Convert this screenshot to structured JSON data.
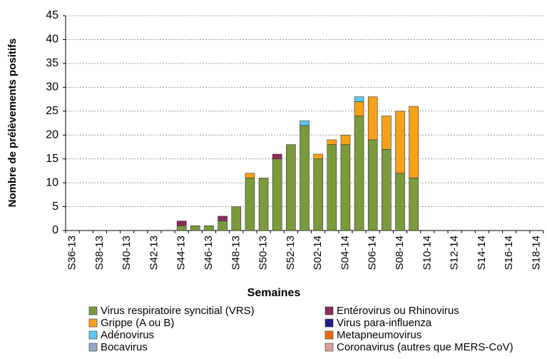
{
  "chart_data": {
    "type": "stacked_bar",
    "y_label": "Nombre de prélèvements positifs",
    "x_label": "Semaines",
    "categories": [
      "S36-13",
      null,
      "S38-13",
      null,
      "S40-13",
      null,
      "S42-13",
      null,
      "S44-13",
      null,
      "S46-13",
      null,
      "S48-13",
      null,
      "S50-13",
      null,
      "S52-13",
      null,
      "S02-14",
      null,
      "S04-14",
      null,
      "S06-14",
      null,
      "S08-14",
      null,
      "S10-14",
      null,
      "S12-14",
      null,
      "S14-14",
      null,
      "S16-14",
      null,
      "S18-14"
    ],
    "series": [
      {
        "name": "Virus respiratoire syncitial (VRS)",
        "color": "#7a9a3c",
        "values": [
          0,
          0,
          0,
          0,
          0,
          0,
          0,
          0,
          1,
          1,
          1,
          2,
          5,
          11,
          11,
          15,
          18,
          22,
          15,
          18,
          18,
          24,
          19,
          17,
          12,
          11,
          0,
          0,
          0,
          0,
          0,
          0,
          0,
          0,
          0
        ]
      },
      {
        "name": "Entérovirus ou Rhinovirus",
        "color": "#8e2a5c",
        "values": [
          0,
          0,
          0,
          0,
          0,
          0,
          0,
          0,
          1,
          0,
          0,
          1,
          0,
          0,
          0,
          1,
          0,
          0,
          0,
          0,
          0,
          0,
          0,
          0,
          0,
          0,
          0,
          0,
          0,
          0,
          0,
          0,
          0,
          0,
          0
        ]
      },
      {
        "name": "Grippe (A ou B)",
        "color": "#f7a11a",
        "values": [
          0,
          0,
          0,
          0,
          0,
          0,
          0,
          0,
          0,
          0,
          0,
          0,
          0,
          1,
          0,
          0,
          0,
          0,
          1,
          1,
          2,
          3,
          9,
          7,
          13,
          15,
          0,
          0,
          0,
          0,
          0,
          0,
          0,
          0,
          0
        ]
      },
      {
        "name": "Virus para-influenza",
        "color": "#1f1f8c",
        "values": [
          0,
          0,
          0,
          0,
          0,
          0,
          0,
          0,
          0,
          0,
          0,
          0,
          0,
          0,
          0,
          0,
          0,
          0,
          0,
          0,
          0,
          0,
          0,
          0,
          0,
          0,
          0,
          0,
          0,
          0,
          0,
          0,
          0,
          0,
          0
        ]
      },
      {
        "name": "Adénovirus",
        "color": "#5bc8f5",
        "values": [
          0,
          0,
          0,
          0,
          0,
          0,
          0,
          0,
          0,
          0,
          0,
          0,
          0,
          0,
          0,
          0,
          0,
          1,
          0,
          0,
          0,
          1,
          0,
          0,
          0,
          0,
          0,
          0,
          0,
          0,
          0,
          0,
          0,
          0,
          0
        ]
      },
      {
        "name": "Metapneumovirus",
        "color": "#f06a0a",
        "values": [
          0,
          0,
          0,
          0,
          0,
          0,
          0,
          0,
          0,
          0,
          0,
          0,
          0,
          0,
          0,
          0,
          0,
          0,
          0,
          0,
          0,
          0,
          0,
          0,
          0,
          0,
          0,
          0,
          0,
          0,
          0,
          0,
          0,
          0,
          0
        ]
      },
      {
        "name": "Bocavirus",
        "color": "#95a9cf",
        "values": [
          0,
          0,
          0,
          0,
          0,
          0,
          0,
          0,
          0,
          0,
          0,
          0,
          0,
          0,
          0,
          0,
          0,
          0,
          0,
          0,
          0,
          0,
          0,
          0,
          0,
          0,
          0,
          0,
          0,
          0,
          0,
          0,
          0,
          0,
          0
        ]
      },
      {
        "name": "Coronavirus (autres que MERS-CoV)",
        "color": "#d9a0a0",
        "values": [
          0,
          0,
          0,
          0,
          0,
          0,
          0,
          0,
          0,
          0,
          0,
          0,
          0,
          0,
          0,
          0,
          0,
          0,
          0,
          0,
          0,
          0,
          0,
          0,
          0,
          0,
          0,
          0,
          0,
          0,
          0,
          0,
          0,
          0,
          0
        ]
      }
    ],
    "ylim": [
      0,
      45
    ],
    "yticks": [
      0,
      5,
      10,
      15,
      20,
      25,
      30,
      35,
      40,
      45
    ],
    "grid": true
  }
}
